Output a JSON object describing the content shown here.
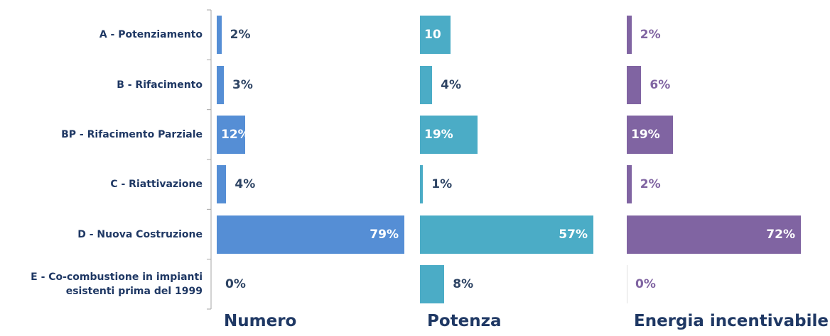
{
  "chart_data": {
    "type": "bar",
    "categories": [
      "A - Potenziamento",
      "B - Rifacimento",
      "BP - Rifacimento Parziale",
      "C - Riattivazione",
      "D - Nuova Costruzione",
      "E - Co-combustione in impianti esistenti prima del 1999"
    ],
    "series": [
      {
        "name": "Numero",
        "color": "#558ed5",
        "label_color": "#2e4464",
        "values": [
          2,
          3,
          12,
          4,
          79,
          0
        ],
        "value_labels": [
          "2%",
          "3%",
          "12%",
          "4%",
          "79%",
          "0%"
        ]
      },
      {
        "name": "Potenza",
        "color": "#4bacc6",
        "label_color": "#2e4464",
        "values": [
          10,
          4,
          19,
          1,
          57,
          8
        ],
        "value_labels": [
          "10",
          "4%",
          "19%",
          "1%",
          "57%",
          "8%"
        ]
      },
      {
        "name": "Energia incentivabile",
        "color": "#8064a2",
        "label_color": "#8064a2",
        "values": [
          2,
          6,
          19,
          2,
          72,
          0
        ],
        "value_labels": [
          "2%",
          "6%",
          "19%",
          "2%",
          "72%",
          "0%"
        ]
      }
    ]
  }
}
